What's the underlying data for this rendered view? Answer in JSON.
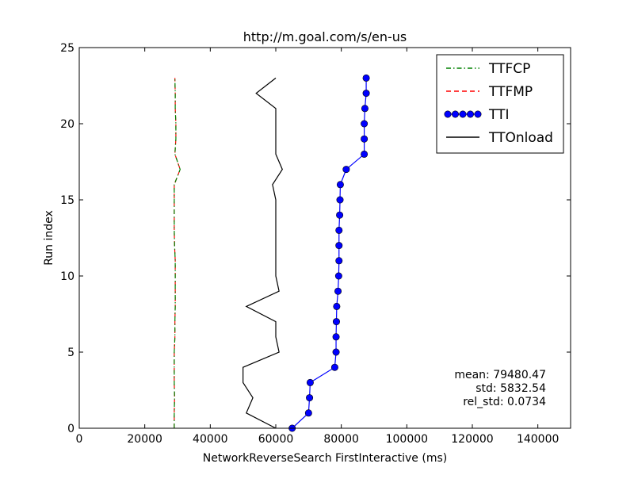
{
  "chart_data": {
    "type": "line",
    "title": "http://m.goal.com/s/en-us",
    "xlabel": "NetworkReverseSearch FirstInteractive (ms)",
    "ylabel": "Run index",
    "xlim": [
      0,
      150000
    ],
    "ylim": [
      0,
      25
    ],
    "xticks": [
      0,
      20000,
      40000,
      60000,
      80000,
      100000,
      120000,
      140000
    ],
    "xtick_labels": [
      "0",
      "20000",
      "40000",
      "60000",
      "80000",
      "100000",
      "120000",
      "140000"
    ],
    "yticks": [
      0,
      5,
      10,
      15,
      20,
      25
    ],
    "ytick_labels": [
      "0",
      "5",
      "10",
      "15",
      "20",
      "25"
    ],
    "grid": false,
    "legend_position": "top-right",
    "series": [
      {
        "name": "TTFCP",
        "color": "#008000",
        "style": "dash-dot",
        "marker": "none",
        "x": [
          29000,
          29000,
          29100,
          29000,
          29000,
          29000,
          29200,
          29200,
          29300,
          29300,
          29300,
          29300,
          29100,
          29000,
          29000,
          29000,
          29000,
          30800,
          29200,
          29500,
          29500,
          29300,
          29300,
          29200
        ],
        "y": [
          0,
          1,
          2,
          3,
          4,
          5,
          6,
          7,
          8,
          9,
          10,
          11,
          12,
          13,
          14,
          15,
          16,
          17,
          18,
          19,
          20,
          21,
          22,
          23
        ]
      },
      {
        "name": "TTFMP",
        "color": "#ff0000",
        "style": "dashed",
        "marker": "none",
        "x": [
          29000,
          29000,
          29100,
          29000,
          29000,
          29000,
          29200,
          29200,
          29300,
          29300,
          29300,
          29300,
          29100,
          29000,
          29000,
          29000,
          29000,
          30800,
          29200,
          29500,
          29500,
          29300,
          29300,
          29200
        ],
        "y": [
          0,
          1,
          2,
          3,
          4,
          5,
          6,
          7,
          8,
          9,
          10,
          11,
          12,
          13,
          14,
          15,
          16,
          17,
          18,
          19,
          20,
          21,
          22,
          23
        ]
      },
      {
        "name": "TTI",
        "color": "#0000ff",
        "style": "solid",
        "marker": "circle",
        "x": [
          65000,
          70000,
          70300,
          70500,
          78000,
          78400,
          78400,
          78500,
          78600,
          79000,
          79200,
          79300,
          79300,
          79300,
          79500,
          79600,
          79700,
          81500,
          87000,
          87000,
          87000,
          87200,
          87600,
          87600
        ],
        "y": [
          0,
          1,
          2,
          3,
          4,
          5,
          6,
          7,
          8,
          9,
          10,
          11,
          12,
          13,
          14,
          15,
          16,
          17,
          18,
          19,
          20,
          21,
          22,
          23
        ]
      },
      {
        "name": "TTOnload",
        "color": "#000000",
        "style": "solid",
        "marker": "none",
        "x": [
          60000,
          51000,
          53000,
          50000,
          50000,
          61000,
          60000,
          60000,
          51000,
          61000,
          60000,
          60000,
          60000,
          60000,
          60000,
          60000,
          59000,
          62000,
          60000,
          60000,
          60000,
          60000,
          54000,
          60000
        ],
        "y": [
          0,
          1,
          2,
          3,
          4,
          5,
          6,
          7,
          8,
          9,
          10,
          11,
          12,
          13,
          14,
          15,
          16,
          17,
          18,
          19,
          20,
          21,
          22,
          23
        ]
      }
    ],
    "annotations": [
      "mean: 79480.47",
      "std: 5832.54",
      "rel_std: 0.0734"
    ]
  }
}
